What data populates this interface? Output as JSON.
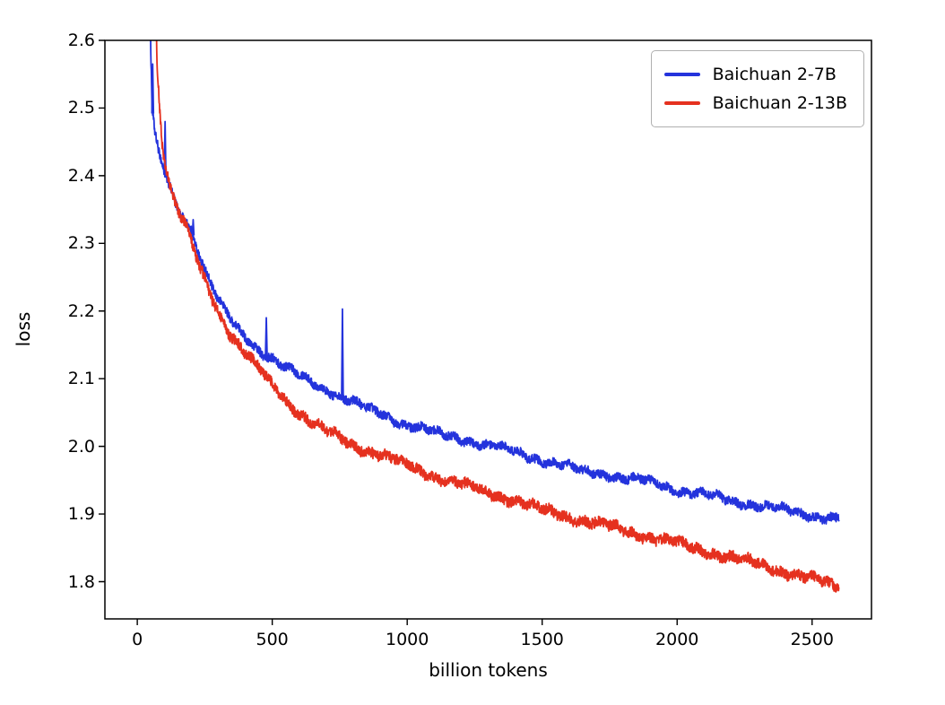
{
  "figure": {
    "background": "#ffffff"
  },
  "chart_data": {
    "type": "line",
    "title": "",
    "xlabel": "billion tokens",
    "ylabel": "loss",
    "xlim": [
      -120,
      2720
    ],
    "ylim": [
      1.745,
      2.6
    ],
    "x_ticks": [
      0,
      500,
      1000,
      1500,
      2000,
      2500
    ],
    "y_ticks": [
      1.8,
      1.9,
      2.0,
      2.1,
      2.2,
      2.3,
      2.4,
      2.5,
      2.6
    ],
    "grid": false,
    "legend_position": "upper right",
    "series": [
      {
        "name": "Baichuan 2-7B",
        "color": "#2433dc",
        "noise_amplitude": 0.0065,
        "x_start": 40,
        "x_end": 2600,
        "anchors": [
          [
            40,
            3.0
          ],
          [
            50,
            2.58
          ],
          [
            55,
            2.5
          ],
          [
            65,
            2.46
          ],
          [
            80,
            2.43
          ],
          [
            100,
            2.405
          ],
          [
            120,
            2.385
          ],
          [
            140,
            2.36
          ],
          [
            160,
            2.345
          ],
          [
            180,
            2.335
          ],
          [
            200,
            2.32
          ],
          [
            230,
            2.285
          ],
          [
            260,
            2.25
          ],
          [
            300,
            2.215
          ],
          [
            340,
            2.19
          ],
          [
            380,
            2.17
          ],
          [
            420,
            2.155
          ],
          [
            460,
            2.14
          ],
          [
            500,
            2.13
          ],
          [
            550,
            2.115
          ],
          [
            600,
            2.105
          ],
          [
            650,
            2.095
          ],
          [
            700,
            2.085
          ],
          [
            750,
            2.075
          ],
          [
            800,
            2.065
          ],
          [
            850,
            2.055
          ],
          [
            900,
            2.05
          ],
          [
            950,
            2.04
          ],
          [
            1000,
            2.032
          ],
          [
            1100,
            2.02
          ],
          [
            1200,
            2.012
          ],
          [
            1300,
            2.0
          ],
          [
            1400,
            1.992
          ],
          [
            1500,
            1.98
          ],
          [
            1600,
            1.968
          ],
          [
            1650,
            1.963
          ],
          [
            1700,
            1.962
          ],
          [
            1750,
            1.958
          ],
          [
            1800,
            1.952
          ],
          [
            1850,
            1.95
          ],
          [
            1900,
            1.947
          ],
          [
            1950,
            1.943
          ],
          [
            2000,
            1.935
          ],
          [
            2100,
            1.928
          ],
          [
            2200,
            1.92
          ],
          [
            2300,
            1.913
          ],
          [
            2400,
            1.905
          ],
          [
            2500,
            1.898
          ],
          [
            2600,
            1.893
          ]
        ],
        "spikes": [
          [
            57,
            2.565
          ],
          [
            103,
            2.48
          ],
          [
            168,
            2.345
          ],
          [
            207,
            2.335
          ],
          [
            478,
            2.19
          ],
          [
            760,
            2.203
          ]
        ]
      },
      {
        "name": "Baichuan 2-13B",
        "color": "#e5311f",
        "noise_amplitude": 0.008,
        "x_start": 62,
        "x_end": 2600,
        "anchors": [
          [
            62,
            3.0
          ],
          [
            72,
            2.58
          ],
          [
            80,
            2.52
          ],
          [
            90,
            2.46
          ],
          [
            100,
            2.425
          ],
          [
            120,
            2.385
          ],
          [
            140,
            2.36
          ],
          [
            160,
            2.34
          ],
          [
            180,
            2.325
          ],
          [
            200,
            2.3
          ],
          [
            230,
            2.265
          ],
          [
            260,
            2.235
          ],
          [
            300,
            2.2
          ],
          [
            340,
            2.17
          ],
          [
            380,
            2.148
          ],
          [
            420,
            2.128
          ],
          [
            460,
            2.11
          ],
          [
            500,
            2.09
          ],
          [
            550,
            2.068
          ],
          [
            600,
            2.05
          ],
          [
            650,
            2.035
          ],
          [
            700,
            2.022
          ],
          [
            750,
            2.012
          ],
          [
            800,
            2.002
          ],
          [
            850,
            1.995
          ],
          [
            900,
            1.988
          ],
          [
            950,
            1.98
          ],
          [
            1000,
            1.972
          ],
          [
            1100,
            1.956
          ],
          [
            1200,
            1.944
          ],
          [
            1300,
            1.932
          ],
          [
            1400,
            1.92
          ],
          [
            1500,
            1.906
          ],
          [
            1600,
            1.896
          ],
          [
            1700,
            1.886
          ],
          [
            1800,
            1.876
          ],
          [
            1900,
            1.866
          ],
          [
            2000,
            1.856
          ],
          [
            2100,
            1.846
          ],
          [
            2200,
            1.836
          ],
          [
            2300,
            1.826
          ],
          [
            2400,
            1.815
          ],
          [
            2500,
            1.803
          ],
          [
            2600,
            1.792
          ]
        ],
        "spikes": []
      }
    ]
  }
}
